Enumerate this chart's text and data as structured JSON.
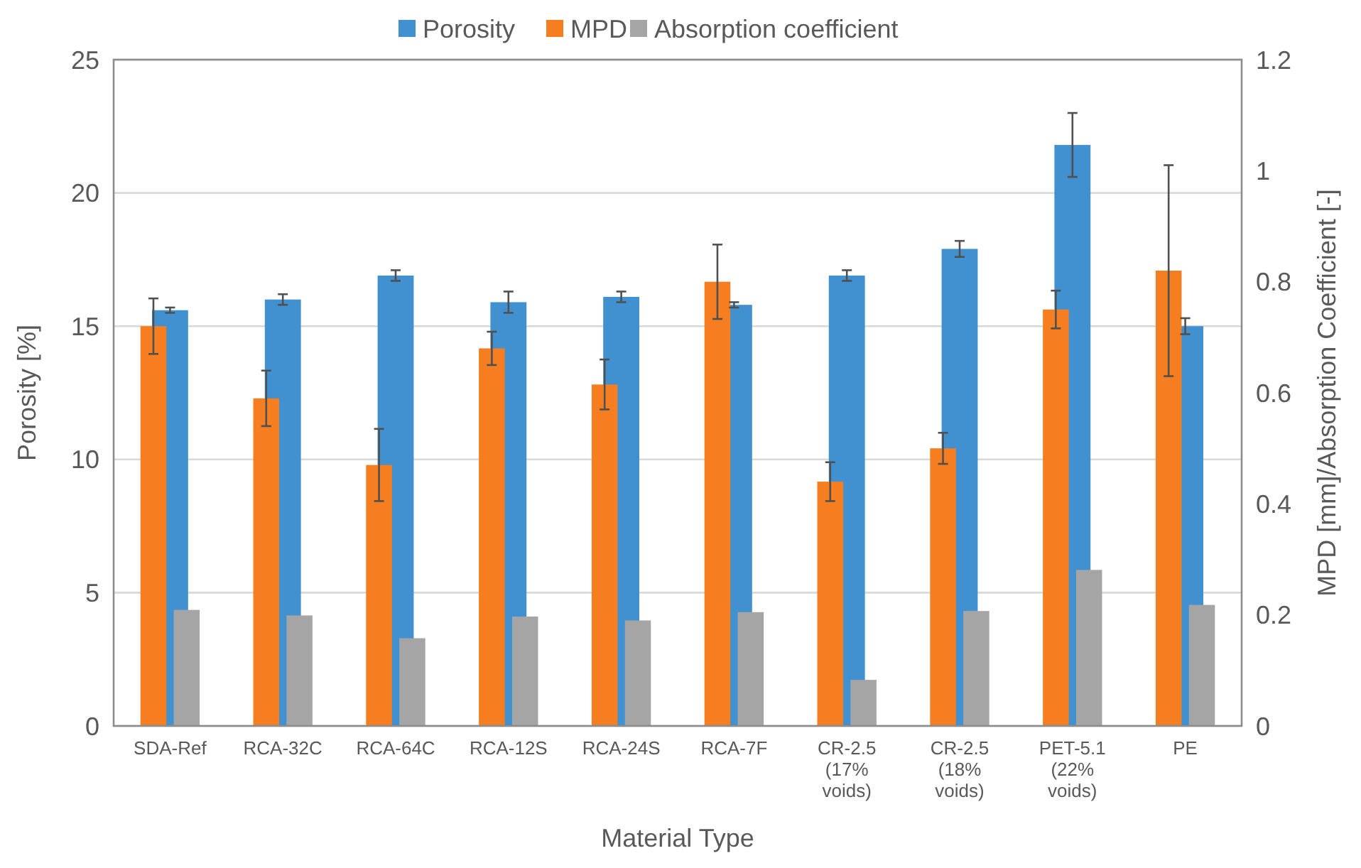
{
  "chart_data": {
    "type": "bar",
    "xlabel": "Material Type",
    "ylabel": "Porosity [%]",
    "y2label": "MPD [mm]/Absorption Coefficient [-]",
    "categories": [
      "SDA-Ref",
      "RCA-32C",
      "RCA-64C",
      "RCA-12S",
      "RCA-24S",
      "RCA-7F",
      "CR-2.5 (17% voids)",
      "CR-2.5 (18% voids)",
      "PET-5.1 (22% voids)",
      "PE"
    ],
    "series": [
      {
        "name": "Porosity",
        "color": "#4190d0",
        "values": [
          15.6,
          16.0,
          16.9,
          15.9,
          16.1,
          15.8,
          16.9,
          17.9,
          21.8,
          15.0
        ],
        "errors": [
          0.1,
          0.2,
          0.2,
          0.4,
          0.2,
          0.1,
          0.2,
          0.3,
          1.2,
          0.3
        ]
      },
      {
        "name": "MPD",
        "color": "#f47e20",
        "axis": "y2",
        "values": [
          0.72,
          0.59,
          0.47,
          0.68,
          0.615,
          0.8,
          0.44,
          0.5,
          0.75,
          0.82
        ],
        "errors": [
          0.05,
          0.05,
          0.065,
          0.03,
          0.045,
          0.067,
          0.035,
          0.028,
          0.034,
          0.19
        ]
      },
      {
        "name": "Absorption coefficient",
        "color": "#a5a5a5",
        "axis": "y2",
        "values": [
          0.209,
          0.199,
          0.158,
          0.197,
          0.19,
          0.205,
          0.083,
          0.207,
          0.281,
          0.218
        ]
      }
    ],
    "ylim": [
      0,
      25
    ],
    "yticks": [
      0,
      5,
      10,
      15,
      20,
      25
    ],
    "y2lim": [
      0,
      1.2
    ],
    "y2ticks": [
      0,
      {
        "value": 0.2,
        "label": "0.2"
      },
      {
        "value": 0.4,
        "label": "0.4"
      },
      {
        "value": 0.6,
        "label": "0.6"
      },
      {
        "value": 0.8,
        "label": "0.8"
      },
      1,
      {
        "value": 1.2,
        "label": "1.2"
      }
    ],
    "grid": "y",
    "legend": "top"
  }
}
